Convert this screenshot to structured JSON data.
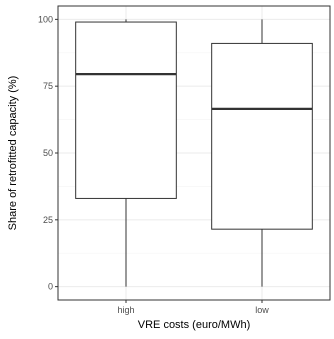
{
  "chart_data": {
    "type": "boxplot",
    "xlabel": "VRE costs (euro/MWh)",
    "ylabel": "Share of retrofitted capacity (%)",
    "ylim": [
      -5,
      105
    ],
    "yticks": [
      0,
      25,
      50,
      75,
      100
    ],
    "categories": [
      "high",
      "low"
    ],
    "boxes": [
      {
        "category": "high",
        "min": 0,
        "q1": 33,
        "median": 79.5,
        "q3": 99,
        "max": 100
      },
      {
        "category": "low",
        "min": 0,
        "q1": 21.5,
        "median": 66.5,
        "q3": 91,
        "max": 100
      }
    ],
    "grid": true,
    "colors": {
      "box_stroke": "#333333",
      "box_fill": "#ffffff",
      "grid": "#ebebeb"
    }
  }
}
